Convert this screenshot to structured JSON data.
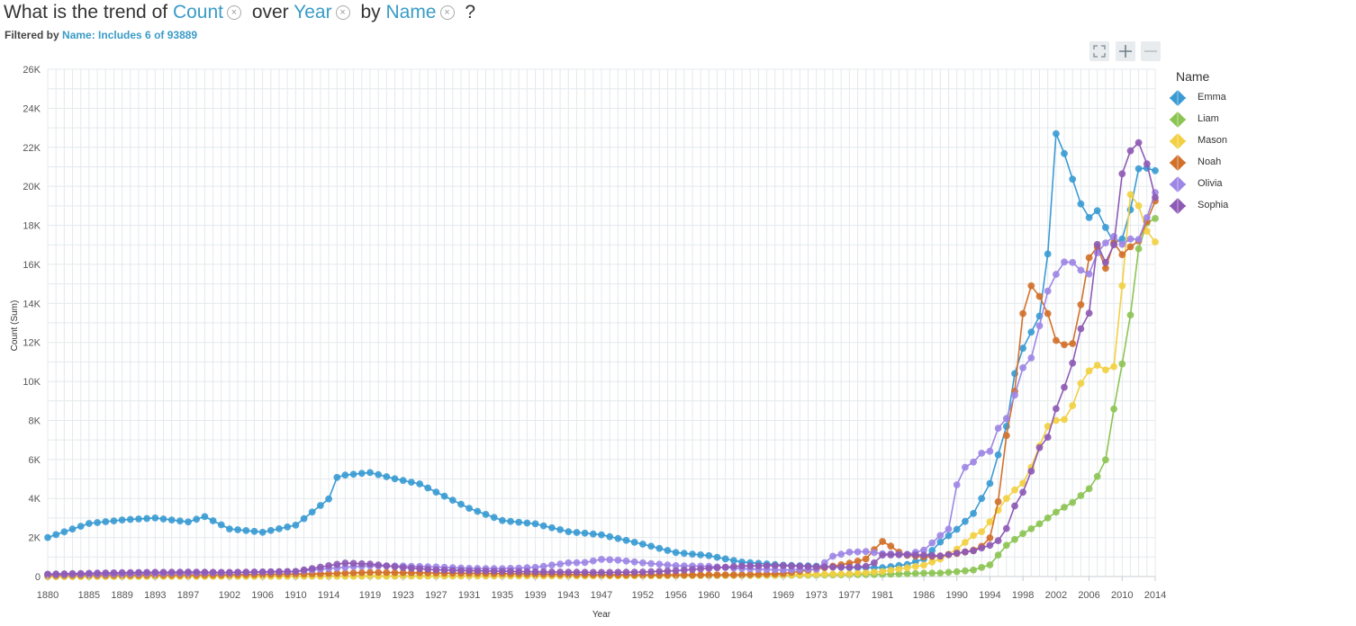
{
  "question": {
    "p1": "What is the trend of",
    "measure": "Count",
    "p2": "over",
    "dimension": "Year",
    "p3": "by",
    "group": "Name",
    "p4": "?",
    "remove_glyph": "×"
  },
  "filter": {
    "label": "Filtered by",
    "value": "Name: Includes 6 of 93889"
  },
  "toolbar": {
    "expand_icon": "expand-icon",
    "zoom_in_icon": "plus-icon",
    "zoom_out_icon": "minus-icon"
  },
  "chart_data": {
    "type": "line",
    "xlabel": "Year",
    "ylabel": "Count (Sum)",
    "ylim": [
      0,
      26000
    ],
    "xlim": [
      1880,
      2014
    ],
    "grid": true,
    "legend_placement": "right",
    "legend_title": "Name",
    "x_ticks": [
      1880,
      1885,
      1889,
      1893,
      1897,
      1902,
      1906,
      1910,
      1914,
      1919,
      1923,
      1927,
      1931,
      1935,
      1939,
      1943,
      1947,
      1952,
      1956,
      1960,
      1964,
      1969,
      1973,
      1977,
      1981,
      1986,
      1990,
      1994,
      1998,
      2002,
      2006,
      2010,
      2014
    ],
    "y_ticks": [
      "0",
      "2K",
      "4K",
      "6K",
      "8K",
      "10K",
      "12K",
      "14K",
      "16K",
      "18K",
      "20K",
      "22K",
      "24K",
      "26K"
    ],
    "series": [
      {
        "name": "Emma",
        "color": "#3a9bd3",
        "points": [
          [
            1880,
            2003
          ],
          [
            1885,
            2720
          ],
          [
            1889,
            2900
          ],
          [
            1893,
            3000
          ],
          [
            1897,
            2800
          ],
          [
            1899,
            3070
          ],
          [
            1902,
            2440
          ],
          [
            1906,
            2270
          ],
          [
            1910,
            2630
          ],
          [
            1914,
            3980
          ],
          [
            1915,
            5080
          ],
          [
            1916,
            5200
          ],
          [
            1919,
            5330
          ],
          [
            1922,
            5010
          ],
          [
            1925,
            4750
          ],
          [
            1927,
            4330
          ],
          [
            1931,
            3500
          ],
          [
            1935,
            2870
          ],
          [
            1939,
            2700
          ],
          [
            1943,
            2300
          ],
          [
            1947,
            2140
          ],
          [
            1952,
            1660
          ],
          [
            1956,
            1230
          ],
          [
            1960,
            1070
          ],
          [
            1964,
            740
          ],
          [
            1969,
            580
          ],
          [
            1973,
            530
          ],
          [
            1977,
            460
          ],
          [
            1981,
            450
          ],
          [
            1984,
            620
          ],
          [
            1986,
            900
          ],
          [
            1988,
            1770
          ],
          [
            1990,
            2420
          ],
          [
            1992,
            3230
          ],
          [
            1994,
            4770
          ],
          [
            1996,
            7700
          ],
          [
            1997,
            10400
          ],
          [
            1998,
            11700
          ],
          [
            2000,
            13350
          ],
          [
            2001,
            16530
          ],
          [
            2002,
            22700
          ],
          [
            2003,
            21680
          ],
          [
            2004,
            20360
          ],
          [
            2005,
            19100
          ],
          [
            2006,
            18400
          ],
          [
            2007,
            18750
          ],
          [
            2008,
            17890
          ],
          [
            2009,
            17100
          ],
          [
            2010,
            17300
          ],
          [
            2011,
            18800
          ],
          [
            2012,
            20900
          ],
          [
            2013,
            20930
          ],
          [
            2014,
            20800
          ]
        ]
      },
      {
        "name": "Liam",
        "color": "#8cc453",
        "points": [
          [
            1880,
            0
          ],
          [
            1947,
            40
          ],
          [
            1969,
            60
          ],
          [
            1977,
            90
          ],
          [
            1981,
            110
          ],
          [
            1986,
            170
          ],
          [
            1988,
            180
          ],
          [
            1990,
            250
          ],
          [
            1992,
            330
          ],
          [
            1994,
            600
          ],
          [
            1996,
            1600
          ],
          [
            1998,
            2200
          ],
          [
            2000,
            2700
          ],
          [
            2002,
            3300
          ],
          [
            2004,
            3800
          ],
          [
            2006,
            4500
          ],
          [
            2007,
            5130
          ],
          [
            2008,
            5980
          ],
          [
            2009,
            8590
          ],
          [
            2010,
            10900
          ],
          [
            2011,
            13400
          ],
          [
            2012,
            16800
          ],
          [
            2013,
            18120
          ],
          [
            2014,
            18350
          ]
        ]
      },
      {
        "name": "Mason",
        "color": "#f2d041",
        "points": [
          [
            1880,
            0
          ],
          [
            1952,
            40
          ],
          [
            1969,
            70
          ],
          [
            1977,
            140
          ],
          [
            1981,
            260
          ],
          [
            1986,
            580
          ],
          [
            1988,
            900
          ],
          [
            1990,
            1400
          ],
          [
            1992,
            2100
          ],
          [
            1993,
            2300
          ],
          [
            1994,
            2800
          ],
          [
            1996,
            4000
          ],
          [
            1997,
            4440
          ],
          [
            1998,
            4780
          ],
          [
            1999,
            5600
          ],
          [
            2000,
            6700
          ],
          [
            2001,
            7700
          ],
          [
            2002,
            8000
          ],
          [
            2003,
            8050
          ],
          [
            2004,
            8760
          ],
          [
            2005,
            9900
          ],
          [
            2006,
            10540
          ],
          [
            2007,
            10830
          ],
          [
            2008,
            10590
          ],
          [
            2009,
            10760
          ],
          [
            2010,
            14900
          ],
          [
            2011,
            19580
          ],
          [
            2012,
            19000
          ],
          [
            2013,
            17700
          ],
          [
            2014,
            17150
          ]
        ]
      },
      {
        "name": "Noah",
        "color": "#d2702a",
        "points": [
          [
            1880,
            60
          ],
          [
            1902,
            90
          ],
          [
            1914,
            150
          ],
          [
            1919,
            210
          ],
          [
            1927,
            180
          ],
          [
            1939,
            130
          ],
          [
            1947,
            90
          ],
          [
            1956,
            80
          ],
          [
            1964,
            90
          ],
          [
            1969,
            150
          ],
          [
            1973,
            380
          ],
          [
            1977,
            680
          ],
          [
            1979,
            900
          ],
          [
            1980,
            1380
          ],
          [
            1981,
            1800
          ],
          [
            1982,
            1560
          ],
          [
            1983,
            1250
          ],
          [
            1984,
            1090
          ],
          [
            1986,
            1000
          ],
          [
            1988,
            1050
          ],
          [
            1990,
            1180
          ],
          [
            1992,
            1350
          ],
          [
            1993,
            1550
          ],
          [
            1994,
            1980
          ],
          [
            1995,
            3830
          ],
          [
            1996,
            7230
          ],
          [
            1997,
            9500
          ],
          [
            1998,
            13480
          ],
          [
            1999,
            14900
          ],
          [
            2000,
            14360
          ],
          [
            2001,
            13480
          ],
          [
            2002,
            12100
          ],
          [
            2003,
            11880
          ],
          [
            2004,
            11940
          ],
          [
            2005,
            13930
          ],
          [
            2006,
            16340
          ],
          [
            2007,
            16890
          ],
          [
            2008,
            15800
          ],
          [
            2009,
            17110
          ],
          [
            2010,
            16500
          ],
          [
            2011,
            16900
          ],
          [
            2012,
            17200
          ],
          [
            2013,
            18200
          ],
          [
            2014,
            19250
          ]
        ]
      },
      {
        "name": "Olivia",
        "color": "#9d86e6",
        "points": [
          [
            1880,
            100
          ],
          [
            1885,
            120
          ],
          [
            1893,
            160
          ],
          [
            1902,
            200
          ],
          [
            1910,
            260
          ],
          [
            1914,
            410
          ],
          [
            1917,
            510
          ],
          [
            1919,
            540
          ],
          [
            1923,
            540
          ],
          [
            1927,
            490
          ],
          [
            1931,
            420
          ],
          [
            1935,
            400
          ],
          [
            1939,
            470
          ],
          [
            1943,
            700
          ],
          [
            1945,
            720
          ],
          [
            1947,
            880
          ],
          [
            1949,
            840
          ],
          [
            1952,
            700
          ],
          [
            1956,
            560
          ],
          [
            1960,
            520
          ],
          [
            1964,
            400
          ],
          [
            1969,
            330
          ],
          [
            1973,
            380
          ],
          [
            1975,
            1040
          ],
          [
            1977,
            1250
          ],
          [
            1979,
            1280
          ],
          [
            1981,
            1170
          ],
          [
            1984,
            1140
          ],
          [
            1986,
            1350
          ],
          [
            1988,
            2100
          ],
          [
            1989,
            2430
          ],
          [
            1990,
            4700
          ],
          [
            1991,
            5600
          ],
          [
            1992,
            5870
          ],
          [
            1993,
            6320
          ],
          [
            1994,
            6420
          ],
          [
            1995,
            7600
          ],
          [
            1996,
            8100
          ],
          [
            1997,
            9300
          ],
          [
            1998,
            10700
          ],
          [
            1999,
            11200
          ],
          [
            2000,
            12850
          ],
          [
            2001,
            14630
          ],
          [
            2002,
            15490
          ],
          [
            2003,
            16120
          ],
          [
            2004,
            16100
          ],
          [
            2005,
            15700
          ],
          [
            2006,
            15510
          ],
          [
            2007,
            16590
          ],
          [
            2008,
            17100
          ],
          [
            2009,
            17430
          ],
          [
            2010,
            17030
          ],
          [
            2011,
            17300
          ],
          [
            2012,
            17280
          ],
          [
            2013,
            18400
          ],
          [
            2014,
            19680
          ]
        ]
      },
      {
        "name": "Sophia",
        "color": "#8e5ab5",
        "points": [
          [
            1880,
            120
          ],
          [
            1889,
            200
          ],
          [
            1897,
            230
          ],
          [
            1902,
            210
          ],
          [
            1910,
            260
          ],
          [
            1914,
            560
          ],
          [
            1916,
            690
          ],
          [
            1919,
            640
          ],
          [
            1923,
            460
          ],
          [
            1927,
            340
          ],
          [
            1931,
            300
          ],
          [
            1939,
            240
          ],
          [
            1947,
            210
          ],
          [
            1952,
            230
          ],
          [
            1956,
            300
          ],
          [
            1960,
            420
          ],
          [
            1964,
            540
          ],
          [
            1969,
            560
          ],
          [
            1973,
            500
          ],
          [
            1977,
            470
          ],
          [
            1979,
            520
          ],
          [
            1980,
            700
          ],
          [
            1981,
            1100
          ],
          [
            1984,
            1120
          ],
          [
            1986,
            1100
          ],
          [
            1988,
            1050
          ],
          [
            1990,
            1200
          ],
          [
            1992,
            1320
          ],
          [
            1994,
            1600
          ],
          [
            1995,
            1840
          ],
          [
            1996,
            2460
          ],
          [
            1997,
            3620
          ],
          [
            1998,
            4320
          ],
          [
            1999,
            5400
          ],
          [
            2000,
            6600
          ],
          [
            2001,
            7140
          ],
          [
            2002,
            8600
          ],
          [
            2003,
            9700
          ],
          [
            2004,
            10940
          ],
          [
            2005,
            12700
          ],
          [
            2006,
            13500
          ],
          [
            2007,
            17020
          ],
          [
            2008,
            16100
          ],
          [
            2009,
            17000
          ],
          [
            2010,
            20640
          ],
          [
            2011,
            21820
          ],
          [
            2012,
            22240
          ],
          [
            2013,
            21150
          ],
          [
            2014,
            19430
          ]
        ]
      }
    ]
  }
}
